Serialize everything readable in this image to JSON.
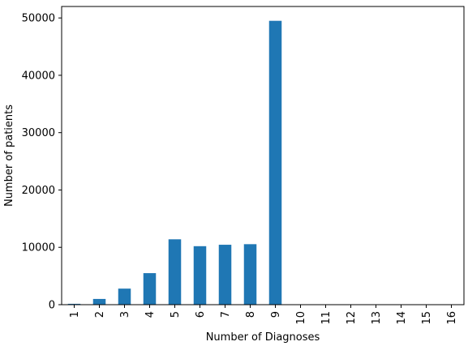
{
  "chart_data": {
    "type": "bar",
    "categories": [
      "1",
      "2",
      "3",
      "4",
      "5",
      "6",
      "7",
      "8",
      "9",
      "10",
      "11",
      "12",
      "13",
      "14",
      "15",
      "16"
    ],
    "values": [
      150,
      1000,
      2800,
      5500,
      11400,
      10200,
      10450,
      10550,
      49500,
      0,
      0,
      0,
      0,
      0,
      0,
      0
    ],
    "xlabel": "Number of Diagnoses",
    "ylabel": "Number of patients",
    "ylim": [
      0,
      52000
    ],
    "yticks": [
      0,
      10000,
      20000,
      30000,
      40000,
      50000
    ],
    "grid": false,
    "bar_color": "#1f77b4"
  }
}
